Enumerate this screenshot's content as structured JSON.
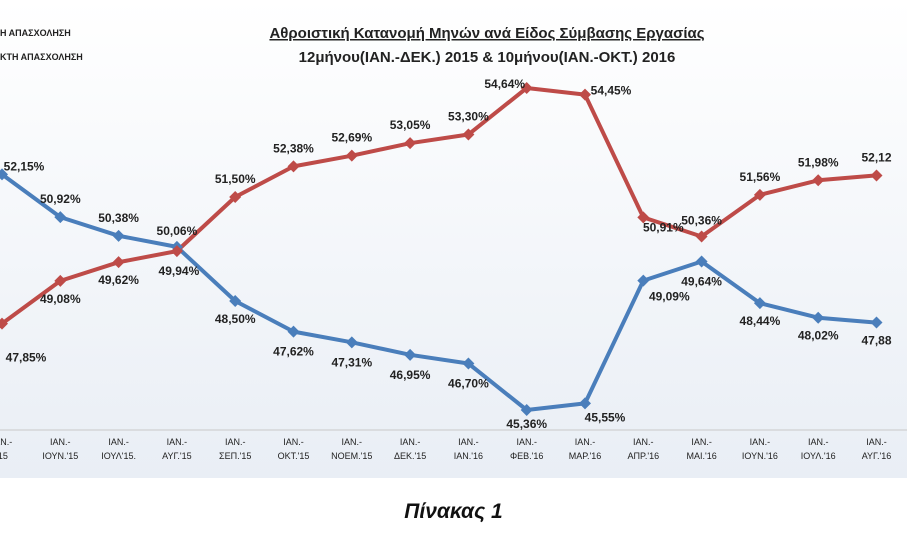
{
  "caption": "Πίνακας 1",
  "chart_data": {
    "type": "line",
    "title": "Αθροιστική Κατανομή Μηνών ανά Είδος Σύμβασης Εργασίας",
    "subtitle": "12μήνου(ΙΑΝ.-ΔΕΚ.) 2015 & 10μήνου(ΙΑΝ.-ΟΚΤ.) 2016",
    "legend": [
      "Η ΑΠΑΣΧΟΛΗΣΗ",
      "ΚΤΗ ΑΠΑΣΧΟΛΗΣΗ"
    ],
    "legend_position": "top-left",
    "grid": false,
    "categories": [
      [
        "ΙΑΝ.-",
        "'15"
      ],
      [
        "ΙΑΝ.-",
        "ΙΟΥΝ.'15"
      ],
      [
        "ΙΑΝ.-",
        "ΙΟΥΛ'15."
      ],
      [
        "ΙΑΝ.-",
        "ΑΥΓ.'15"
      ],
      [
        "ΙΑΝ.-",
        "ΣΕΠ.'15"
      ],
      [
        "ΙΑΝ.-",
        "ΟΚΤ.'15"
      ],
      [
        "ΙΑΝ.-",
        "ΝΟΕΜ.'15"
      ],
      [
        "ΙΑΝ.-",
        "ΔΕΚ.'15"
      ],
      [
        "ΙΑΝ.-",
        "ΙΑΝ.'16"
      ],
      [
        "ΙΑΝ.-",
        "ΦΕΒ.'16"
      ],
      [
        "ΙΑΝ.-",
        "ΜΑΡ.'16"
      ],
      [
        "ΙΑΝ.-",
        "ΑΠΡ.'16"
      ],
      [
        "ΙΑΝ.-",
        "ΜΑΙ.'16"
      ],
      [
        "ΙΑΝ.-",
        "ΙΟΥΝ.'16"
      ],
      [
        "ΙΑΝ.-",
        "ΙΟΥΛ.'16"
      ],
      [
        "ΙΑΝ.-",
        "ΑΥΓ.'16"
      ]
    ],
    "ylim": [
      44.5,
      55.5
    ],
    "series": [
      {
        "color": "#4a7ebb",
        "values": [
          52.15,
          50.92,
          50.38,
          50.06,
          48.5,
          47.62,
          47.31,
          46.95,
          46.7,
          45.36,
          45.55,
          49.09,
          49.64,
          48.44,
          48.02,
          47.88
        ],
        "labels": [
          "52,15%",
          "50,92%",
          "50,38%",
          "50,06%",
          "48,50%",
          "47,62%",
          "47,31%",
          "46,95%",
          "46,70%",
          "45,36%",
          "45,55%",
          "49,09%",
          "49,64%",
          "48,44%",
          "48,02%",
          "47,88"
        ]
      },
      {
        "color": "#be4b48",
        "values": [
          47.85,
          49.08,
          49.62,
          49.94,
          51.5,
          52.38,
          52.69,
          53.05,
          53.3,
          54.64,
          54.45,
          50.91,
          50.36,
          51.56,
          51.98,
          52.12
        ],
        "labels": [
          "47,85%",
          "49,08%",
          "49,62%",
          "49,94%",
          "51,50%",
          "52,38%",
          "52,69%",
          "53,05%",
          "53,30%",
          "54,64%",
          "54,45%",
          "50,91%",
          "50,36%",
          "51,56%",
          "51,98%",
          "52,12"
        ]
      }
    ]
  }
}
